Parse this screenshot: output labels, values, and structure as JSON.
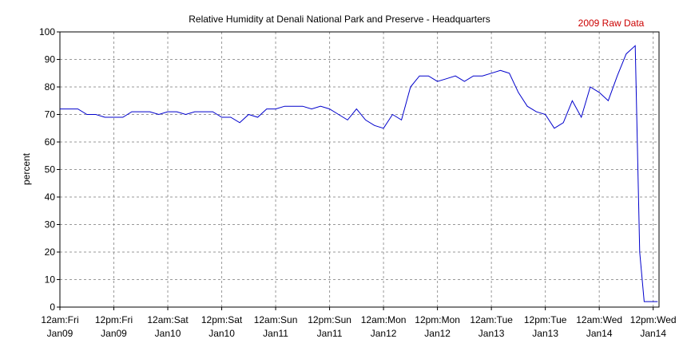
{
  "chart_data": {
    "type": "line",
    "title": "Relative Humidity at Denali National Park and Preserve - Headquarters",
    "annotation": "2009 Raw Data",
    "y_label": "percent",
    "x": [
      0,
      2,
      4,
      6,
      8,
      10,
      12,
      14,
      16,
      18,
      20,
      22,
      24,
      26,
      28,
      30,
      32,
      34,
      36,
      38,
      40,
      42,
      44,
      46,
      48,
      50,
      52,
      54,
      56,
      58,
      60,
      62,
      64,
      66,
      68,
      70,
      72,
      74,
      76,
      78,
      80,
      82,
      84,
      86,
      88,
      90,
      92,
      94,
      96,
      98,
      100,
      102,
      104,
      106,
      108,
      110,
      112,
      114,
      116,
      118,
      120,
      122,
      124,
      126,
      128,
      129,
      130,
      132,
      133
    ],
    "series": [
      {
        "name": "Relative Humidity",
        "color": "#0000cc",
        "values": [
          72,
          72,
          72,
          70,
          70,
          69,
          69,
          69,
          71,
          71,
          71,
          70,
          71,
          71,
          70,
          71,
          71,
          71,
          69,
          69,
          67,
          70,
          69,
          72,
          72,
          73,
          73,
          73,
          72,
          73,
          72,
          70,
          68,
          72,
          68,
          66,
          65,
          70,
          68,
          80,
          84,
          84,
          82,
          83,
          84,
          82,
          84,
          84,
          85,
          86,
          85,
          78,
          73,
          71,
          70,
          65,
          67,
          75,
          69,
          80,
          78,
          75,
          84,
          92,
          95,
          20,
          2,
          2,
          2
        ]
      }
    ],
    "xlim": [
      0,
      133.3
    ],
    "xticks": [
      {
        "value": 0,
        "label": "12am:Fri Jan09"
      },
      {
        "value": 12,
        "label": "12pm:Fri Jan09"
      },
      {
        "value": 24,
        "label": "12am:Sat Jan10"
      },
      {
        "value": 36,
        "label": "12pm:Sat Jan10"
      },
      {
        "value": 48,
        "label": "12am:Sun Jan11"
      },
      {
        "value": 60,
        "label": "12pm:Sun Jan11"
      },
      {
        "value": 72,
        "label": "12am:Mon Jan12"
      },
      {
        "value": 84,
        "label": "12pm:Mon Jan12"
      },
      {
        "value": 96,
        "label": "12am:Tue Jan13"
      },
      {
        "value": 108,
        "label": "12pm:Tue Jan13"
      },
      {
        "value": 120,
        "label": "12am:Wed Jan14"
      },
      {
        "value": 132,
        "label": "12pm:Wed Jan14"
      }
    ],
    "ylim": [
      0,
      100
    ],
    "yticks": [
      0,
      10,
      20,
      30,
      40,
      50,
      60,
      70,
      80,
      90,
      100
    ],
    "grid": true
  }
}
